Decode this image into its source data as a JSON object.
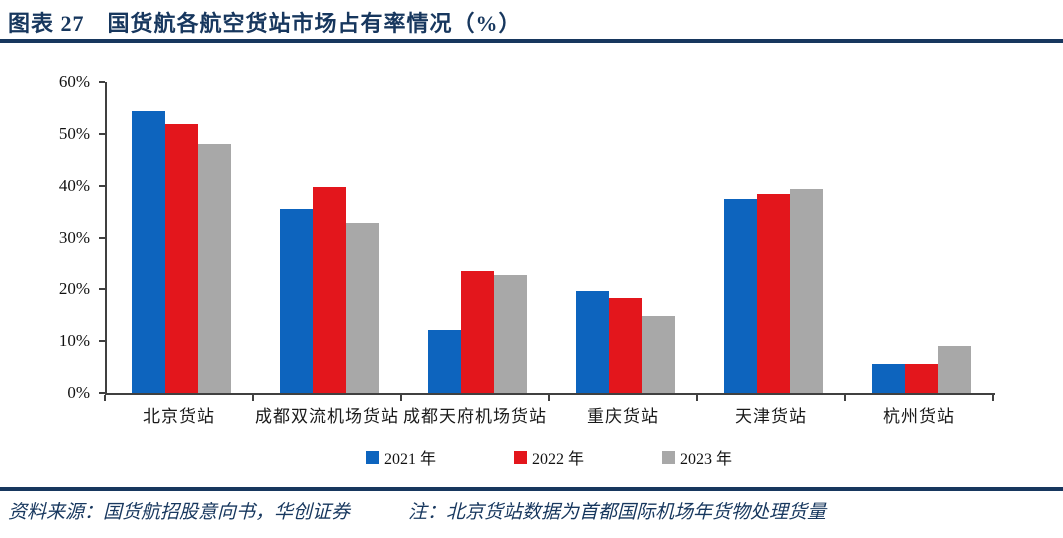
{
  "header": {
    "title": "图表 27　国货航各航空货站市场占有率情况（%）"
  },
  "colors": {
    "accent_navy": "#17375E",
    "axis": "#404040",
    "series_2021": "#0D64BE",
    "series_2022": "#E3161C",
    "series_2023": "#A8A8A8"
  },
  "chart_data": {
    "type": "bar",
    "title": "国货航各航空货站市场占有率情况（%）",
    "categories": [
      "北京货站",
      "成都双流机场货站",
      "成都天府机场货站",
      "重庆货站",
      "天津货站",
      "杭州货站"
    ],
    "series": [
      {
        "name": "2021 年",
        "color": "#0D64BE",
        "values": [
          54.5,
          35.5,
          12.1,
          19.6,
          37.4,
          5.7
        ]
      },
      {
        "name": "2022 年",
        "color": "#E3161C",
        "values": [
          52.0,
          39.8,
          23.6,
          18.4,
          38.4,
          5.7
        ]
      },
      {
        "name": "2023 年",
        "color": "#A8A8A8",
        "values": [
          48.0,
          32.8,
          22.8,
          14.8,
          39.3,
          9.1
        ]
      }
    ],
    "xlabel": "",
    "ylabel": "",
    "ylim": [
      0,
      60
    ],
    "ytick_labels": [
      "0%",
      "10%",
      "20%",
      "30%",
      "40%",
      "50%",
      "60%"
    ],
    "grid": false,
    "legend_position": "bottom"
  },
  "footer": {
    "source": "资料来源：国货航招股意向书，华创证券",
    "note": "注：北京货站数据为首都国际机场年货物处理货量"
  }
}
